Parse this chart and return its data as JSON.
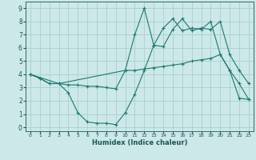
{
  "xlabel": "Humidex (Indice chaleur)",
  "xlim": [
    -0.5,
    23.5
  ],
  "ylim": [
    -0.3,
    9.5
  ],
  "xticks": [
    0,
    1,
    2,
    3,
    4,
    5,
    6,
    7,
    8,
    9,
    10,
    11,
    12,
    13,
    14,
    15,
    16,
    17,
    18,
    19,
    20,
    21,
    22,
    23
  ],
  "yticks": [
    0,
    1,
    2,
    3,
    4,
    5,
    6,
    7,
    8,
    9
  ],
  "bg_color": "#cce8e8",
  "grid_color": "#aacfcf",
  "line_color": "#1a7a6e",
  "line1_x": [
    0,
    1,
    2,
    3,
    4,
    5,
    6,
    7,
    8,
    9,
    10,
    11,
    12,
    13,
    14,
    15,
    16,
    17,
    18,
    19,
    20,
    21,
    22,
    23
  ],
  "line1_y": [
    4.0,
    3.7,
    3.3,
    3.3,
    2.6,
    1.1,
    0.4,
    0.3,
    0.3,
    0.2,
    1.1,
    2.5,
    4.3,
    6.2,
    6.1,
    7.4,
    8.2,
    7.3,
    7.5,
    7.4,
    8.0,
    5.5,
    4.3,
    3.3
  ],
  "line2_x": [
    0,
    1,
    2,
    3,
    4,
    5,
    6,
    7,
    8,
    9,
    10,
    11,
    12,
    13,
    14,
    15,
    16,
    17,
    18,
    19,
    20,
    21,
    22,
    23
  ],
  "line2_y": [
    4.0,
    3.7,
    3.3,
    3.3,
    3.2,
    3.2,
    3.1,
    3.1,
    3.0,
    2.9,
    4.3,
    4.3,
    4.4,
    4.5,
    4.6,
    4.7,
    4.8,
    5.0,
    5.1,
    5.2,
    5.5,
    4.3,
    2.2,
    2.1
  ],
  "line3_x": [
    0,
    3,
    10,
    11,
    12,
    13,
    14,
    15,
    16,
    17,
    18,
    19,
    20,
    21,
    22,
    23
  ],
  "line3_y": [
    4.0,
    3.3,
    4.3,
    7.0,
    9.0,
    6.2,
    7.5,
    8.2,
    7.3,
    7.5,
    7.4,
    8.0,
    5.5,
    4.3,
    3.3,
    2.1
  ]
}
